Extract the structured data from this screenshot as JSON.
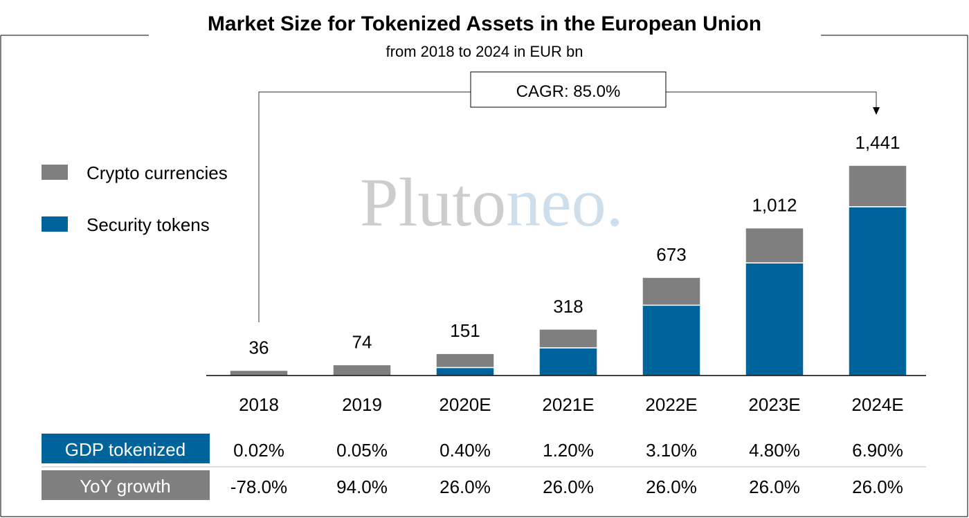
{
  "chart_data": {
    "type": "bar",
    "stacked": true,
    "title": "Market Size for Tokenized Assets in the European Union",
    "subtitle": "from 2018 to 2024 in EUR bn",
    "annotation": "CAGR: 85.0%",
    "watermark": {
      "part1": "Pluto",
      "part2": "neo",
      "part3": "."
    },
    "categories": [
      "2018",
      "2019",
      "2020E",
      "2021E",
      "2022E",
      "2023E",
      "2024E"
    ],
    "totals": [
      36,
      74,
      151,
      318,
      673,
      1012,
      1441
    ],
    "total_labels": [
      "36",
      "74",
      "151",
      "318",
      "673",
      "1,012",
      "1,441"
    ],
    "series": [
      {
        "name": "Security tokens",
        "color": "#00649c",
        "values": [
          0,
          0,
          55,
          190,
          482,
          772,
          1157
        ]
      },
      {
        "name": "Crypto currencies",
        "color": "#7f7f7f",
        "values": [
          36,
          74,
          96,
          128,
          191,
          240,
          284
        ]
      }
    ],
    "ylim": [
      0,
      1441
    ],
    "legend": {
      "position": "left",
      "items": [
        "Crypto currencies",
        "Security tokens"
      ]
    },
    "grid": false,
    "table": {
      "rows": [
        {
          "label": "GDP tokenized",
          "color": "#00649c",
          "values": [
            "0.02%",
            "0.05%",
            "0.40%",
            "1.20%",
            "3.10%",
            "4.80%",
            "6.90%"
          ]
        },
        {
          "label": "YoY growth",
          "color": "#7f7f7f",
          "values": [
            "-78.0%",
            "94.0%",
            "26.0%",
            "26.0%",
            "26.0%",
            "26.0%",
            "26.0%"
          ]
        }
      ]
    }
  }
}
